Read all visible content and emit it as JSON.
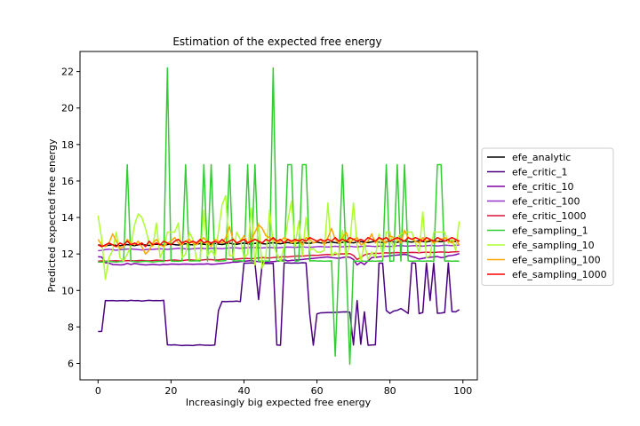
{
  "chart_data": {
    "type": "line",
    "title": "Estimation of the expected free energy",
    "xlabel": "Increasingly big expected free energy",
    "ylabel": "Predicted expected free energy",
    "xlim": [
      -4.95,
      103.95
    ],
    "ylim": [
      5.1,
      23.1
    ],
    "xticks": [
      0,
      20,
      40,
      60,
      80,
      100
    ],
    "yticks": [
      6,
      8,
      10,
      12,
      14,
      16,
      18,
      20,
      22
    ],
    "grid": false,
    "legend_position": "right, outside plot",
    "series": [
      {
        "name": "efe_analytic",
        "color": "#000000",
        "values": [
          12.5,
          12.46,
          12.44,
          12.48,
          12.51,
          12.47,
          12.45,
          12.49,
          12.52,
          12.48,
          12.46,
          12.5,
          12.53,
          12.49,
          12.47,
          12.51,
          12.54,
          12.5,
          12.48,
          12.52,
          12.55,
          12.51,
          12.49,
          12.53,
          12.56,
          12.52,
          12.5,
          12.54,
          12.57,
          12.53,
          12.51,
          12.55,
          12.58,
          12.54,
          12.52,
          12.56,
          12.59,
          12.55,
          12.53,
          12.57,
          12.6,
          12.56,
          12.54,
          12.58,
          12.61,
          12.57,
          12.55,
          12.59,
          12.62,
          12.58,
          12.56,
          12.6,
          12.63,
          12.59,
          12.57,
          12.61,
          12.64,
          12.6,
          12.58,
          12.62,
          12.65,
          12.61,
          12.59,
          12.63,
          12.66,
          12.62,
          12.6,
          12.64,
          12.67,
          12.63,
          12.61,
          12.65,
          12.68,
          12.64,
          12.62,
          12.66,
          12.69,
          12.65,
          12.63,
          12.67,
          12.7,
          12.66,
          12.64,
          12.68,
          12.71,
          12.67,
          12.65,
          12.69,
          12.72,
          12.68,
          12.66,
          12.7,
          12.73,
          12.69,
          12.67,
          12.71,
          12.74,
          12.7,
          12.68,
          12.72
        ]
      },
      {
        "name": "efe_critic_1",
        "color": "#4b0082",
        "values": [
          7.75,
          7.76,
          9.45,
          9.44,
          9.45,
          9.43,
          9.44,
          9.45,
          9.43,
          9.46,
          9.44,
          9.45,
          9.42,
          9.44,
          9.46,
          9.44,
          9.45,
          9.44,
          9.46,
          7.02,
          7.01,
          7.02,
          7.0,
          6.98,
          6.99,
          6.99,
          6.98,
          7.01,
          7.02,
          7.0,
          7.0,
          6.99,
          7.01,
          8.9,
          9.4,
          9.39,
          9.4,
          9.4,
          9.42,
          9.39,
          11.5,
          11.5,
          11.51,
          11.5,
          9.5,
          11.48,
          11.48,
          11.48,
          11.49,
          7.01,
          7.0,
          11.51,
          11.51,
          11.5,
          11.51,
          11.5,
          11.52,
          11.51,
          8.73,
          7.0,
          8.72,
          8.77,
          8.78,
          8.79,
          8.79,
          8.8,
          8.81,
          8.82,
          8.83,
          8.81,
          7.01,
          9.45,
          7.05,
          8.83,
          7.0,
          7.01,
          7.02,
          11.5,
          11.5,
          8.9,
          8.74,
          8.87,
          8.91,
          9.01,
          8.88,
          8.74,
          11.51,
          11.5,
          8.73,
          8.79,
          11.5,
          9.45,
          11.5,
          8.75,
          8.76,
          8.79,
          11.51,
          8.84,
          8.83,
          8.95
        ]
      },
      {
        "name": "efe_critic_10",
        "color": "#7f00aa",
        "values": [
          11.85,
          11.83,
          11.52,
          11.5,
          11.42,
          11.41,
          11.4,
          11.41,
          11.49,
          11.42,
          11.48,
          11.45,
          11.42,
          11.4,
          11.41,
          11.43,
          11.41,
          11.4,
          11.43,
          11.42,
          11.45,
          11.44,
          11.43,
          11.44,
          11.45,
          11.44,
          11.43,
          11.44,
          11.45,
          11.44,
          11.46,
          11.43,
          11.44,
          11.46,
          11.48,
          11.5,
          11.52,
          11.56,
          11.55,
          11.58,
          11.6,
          11.62,
          11.64,
          11.6,
          11.58,
          11.56,
          11.54,
          11.57,
          11.58,
          11.6,
          11.62,
          11.68,
          11.62,
          11.65,
          11.66,
          11.68,
          11.7,
          11.72,
          11.74,
          11.76,
          11.78,
          11.8,
          11.82,
          11.84,
          11.8,
          11.78,
          11.76,
          11.8,
          11.84,
          11.82,
          11.7,
          11.4,
          11.55,
          11.42,
          11.62,
          11.8,
          11.82,
          11.84,
          11.86,
          11.88,
          11.9,
          11.92,
          11.94,
          11.96,
          11.98,
          11.94,
          11.86,
          11.8,
          11.72,
          11.76,
          11.8,
          11.82,
          11.84,
          11.86,
          11.8,
          11.82,
          11.9,
          11.92,
          11.96,
          12.02
        ]
      },
      {
        "name": "efe_critic_100",
        "color": "#9932cc",
        "values": [
          12.18,
          12.2,
          12.24,
          12.26,
          12.23,
          12.21,
          12.23,
          12.25,
          12.27,
          12.28,
          12.26,
          12.24,
          12.22,
          12.24,
          12.26,
          12.25,
          12.27,
          12.29,
          12.27,
          12.25,
          12.27,
          12.29,
          12.31,
          12.3,
          12.28,
          12.26,
          12.29,
          12.3,
          12.32,
          12.3,
          12.29,
          12.31,
          12.32,
          12.3,
          12.29,
          12.31,
          12.33,
          12.34,
          12.33,
          12.31,
          12.33,
          12.34,
          12.36,
          12.35,
          12.34,
          12.33,
          12.35,
          12.36,
          12.34,
          12.33,
          12.35,
          12.37,
          12.38,
          12.37,
          12.36,
          12.38,
          12.39,
          12.37,
          12.36,
          12.38,
          12.4,
          12.41,
          12.39,
          12.38,
          12.4,
          12.42,
          12.4,
          12.39,
          12.41,
          12.42,
          12.4,
          12.39,
          12.41,
          12.43,
          12.44,
          12.42,
          12.41,
          12.43,
          12.44,
          12.42,
          12.41,
          12.43,
          12.45,
          12.46,
          12.44,
          12.43,
          12.45,
          12.46,
          12.45,
          12.43,
          12.45,
          12.47,
          12.46,
          12.44,
          12.46,
          12.48,
          12.47,
          12.46,
          12.48,
          12.49
        ]
      },
      {
        "name": "efe_critic_1000",
        "color": "#dc143c",
        "values": [
          11.6,
          11.62,
          11.6,
          11.61,
          11.62,
          11.63,
          11.61,
          11.62,
          11.64,
          11.63,
          11.62,
          11.64,
          11.65,
          11.63,
          11.62,
          11.64,
          11.66,
          11.65,
          11.63,
          11.64,
          11.66,
          11.67,
          11.65,
          11.64,
          11.66,
          11.68,
          11.67,
          11.65,
          11.66,
          11.68,
          11.7,
          11.69,
          11.67,
          11.68,
          11.7,
          11.72,
          11.71,
          11.7,
          11.72,
          11.74,
          11.76,
          11.75,
          11.74,
          11.76,
          11.78,
          11.8,
          11.79,
          11.78,
          11.8,
          11.82,
          11.84,
          11.85,
          11.84,
          11.86,
          11.88,
          11.89,
          11.88,
          11.9,
          11.92,
          11.93,
          11.92,
          11.94,
          11.96,
          11.97,
          11.96,
          11.98,
          12.0,
          12.01,
          12.0,
          12.02,
          11.92,
          11.7,
          11.8,
          11.95,
          12.0,
          12.02,
          12.04,
          12.03,
          12.05,
          12.06,
          12.05,
          12.07,
          12.08,
          12.07,
          12.06,
          12.08,
          12.09,
          12.08,
          12.07,
          12.09,
          12.1,
          12.09,
          12.08,
          12.1,
          12.11,
          12.1,
          12.09,
          12.11,
          12.12,
          12.13
        ]
      },
      {
        "name": "efe_sampling_1",
        "color": "#32cd32",
        "values": [
          11.55,
          11.56,
          11.58,
          11.6,
          11.57,
          11.56,
          11.58,
          11.59,
          16.9,
          11.6,
          11.58,
          11.56,
          11.58,
          11.6,
          11.58,
          11.56,
          11.58,
          11.6,
          11.58,
          22.2,
          11.62,
          11.6,
          11.6,
          11.62,
          16.9,
          11.62,
          11.62,
          11.63,
          11.61,
          16.9,
          11.61,
          16.9,
          11.63,
          11.61,
          11.62,
          11.64,
          16.9,
          11.62,
          11.62,
          11.63,
          11.6,
          16.9,
          11.6,
          16.9,
          11.6,
          11.62,
          11.61,
          11.6,
          22.2,
          11.62,
          11.63,
          11.6,
          16.9,
          16.9,
          11.61,
          11.62,
          16.9,
          16.9,
          11.62,
          11.63,
          11.61,
          11.62,
          11.6,
          11.61,
          11.62,
          6.4,
          11.61,
          16.9,
          11.62,
          5.95,
          11.62,
          11.6,
          11.61,
          11.6,
          11.6,
          11.61,
          11.6,
          11.62,
          11.61,
          16.9,
          11.6,
          11.61,
          16.9,
          11.61,
          16.9,
          11.62,
          11.6,
          11.61,
          11.62,
          11.6,
          11.61,
          11.62,
          11.6,
          16.9,
          16.9,
          11.61,
          11.62,
          11.6,
          11.61,
          11.6
        ]
      },
      {
        "name": "efe_sampling_10",
        "color": "#adff2f",
        "values": [
          14.1,
          12.8,
          10.6,
          11.8,
          12.2,
          13.2,
          11.8,
          11.6,
          12.0,
          12.4,
          13.6,
          14.2,
          14.0,
          13.4,
          12.6,
          12.4,
          13.7,
          11.8,
          12.3,
          13.2,
          13.2,
          13.2,
          13.7,
          11.8,
          12.0,
          13.2,
          12.8,
          11.7,
          11.7,
          14.4,
          11.9,
          12.2,
          11.9,
          13.2,
          14.7,
          15.2,
          11.9,
          11.9,
          13.2,
          12.8,
          11.8,
          12.0,
          14.5,
          11.4,
          13.7,
          11.2,
          11.9,
          14.4,
          12.5,
          12.0,
          11.6,
          12.4,
          13.8,
          14.9,
          12.4,
          13.8,
          11.9,
          14.0,
          12.2,
          12.3,
          12.1,
          12.1,
          12.2,
          14.8,
          11.9,
          12.1,
          11.9,
          13.3,
          11.8,
          12.6,
          14.8,
          12.5,
          11.6,
          12.6,
          11.7,
          12.1,
          11.8,
          13.1,
          11.8,
          13.2,
          13.2,
          12.2,
          12.9,
          13.1,
          13.2,
          13.2,
          13.2,
          12.6,
          12.1,
          14.3,
          11.8,
          11.9,
          13.2,
          13.2,
          13.2,
          13.2,
          12.6,
          12.8,
          12.2,
          13.8
        ]
      },
      {
        "name": "efe_sampling_100",
        "color": "#ffa500",
        "values": [
          12.8,
          12.5,
          12.4,
          12.6,
          13.1,
          12.7,
          12.3,
          12.4,
          12.8,
          12.6,
          12.5,
          12.7,
          12.4,
          12.0,
          12.2,
          12.6,
          12.8,
          12.5,
          12.4,
          12.6,
          12.7,
          12.9,
          12.6,
          12.5,
          12.7,
          12.8,
          12.6,
          12.5,
          12.7,
          12.9,
          12.6,
          12.4,
          12.8,
          12.7,
          12.6,
          12.9,
          13.5,
          12.8,
          12.6,
          12.7,
          13.0,
          12.6,
          12.8,
          13.2,
          13.6,
          13.4,
          13.0,
          12.9,
          12.8,
          12.6,
          12.7,
          12.9,
          12.8,
          12.6,
          12.7,
          12.8,
          12.5,
          12.9,
          12.8,
          12.6,
          12.7,
          12.8,
          12.5,
          12.9,
          13.4,
          12.8,
          12.6,
          12.9,
          13.2,
          12.6,
          12.8,
          12.9,
          12.5,
          12.6,
          12.7,
          13.1,
          12.6,
          12.9,
          12.7,
          12.6,
          13.0,
          12.9,
          12.8,
          12.6,
          13.3,
          12.9,
          12.8,
          12.7,
          12.6,
          12.9,
          12.7,
          12.8,
          12.6,
          12.7,
          12.8,
          12.9,
          12.7,
          12.6,
          12.8,
          12.5
        ]
      },
      {
        "name": "efe_sampling_1000",
        "color": "#ff0000",
        "values": [
          12.5,
          12.4,
          12.5,
          12.6,
          12.5,
          12.4,
          12.6,
          12.5,
          12.7,
          12.5,
          12.6,
          12.5,
          12.6,
          12.4,
          12.7,
          12.5,
          12.6,
          12.5,
          12.7,
          12.6,
          12.5,
          12.7,
          12.8,
          12.6,
          12.7,
          12.6,
          12.7,
          12.6,
          12.8,
          12.6,
          12.7,
          12.6,
          12.7,
          12.6,
          12.8,
          12.6,
          12.7,
          12.8,
          12.6,
          12.7,
          12.8,
          12.6,
          12.7,
          12.8,
          12.7,
          12.6,
          12.8,
          12.7,
          12.9,
          12.7,
          12.8,
          12.6,
          12.8,
          12.7,
          12.8,
          12.7,
          12.8,
          12.7,
          12.9,
          12.8,
          12.7,
          12.8,
          12.7,
          12.8,
          12.7,
          12.9,
          12.7,
          12.8,
          12.7,
          12.9,
          12.8,
          12.7,
          12.8,
          12.7,
          12.9,
          12.8,
          12.7,
          12.9,
          12.8,
          12.9,
          12.7,
          12.8,
          12.9,
          12.8,
          12.7,
          12.9,
          12.8,
          12.9,
          12.8,
          12.7,
          12.9,
          12.8,
          12.7,
          12.9,
          12.8,
          12.7,
          12.8,
          12.9,
          12.8,
          12.7
        ]
      }
    ]
  }
}
